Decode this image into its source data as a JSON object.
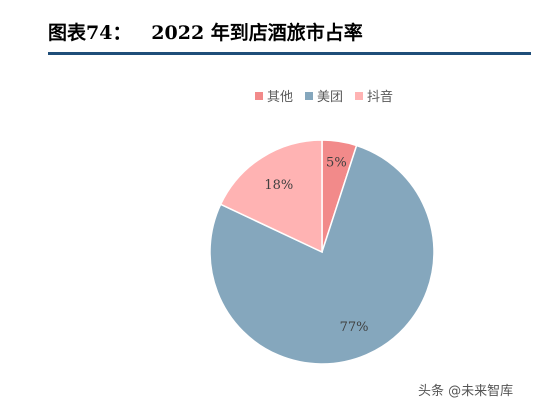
{
  "header": {
    "title": "图表74：   2022 年到店酒旅市占率"
  },
  "colors": {
    "rule": "#1f4e79",
    "slices": [
      "#f28a8a",
      "#85a7bd",
      "#ffb3b3"
    ]
  },
  "chart_data": {
    "type": "pie",
    "title": "",
    "categories": [
      "其他",
      "美团",
      "抖音"
    ],
    "values": [
      5,
      77,
      18
    ],
    "labels": [
      "5%",
      "77%",
      "18%"
    ],
    "legend": "top"
  },
  "watermark": "头条 @未来智库"
}
